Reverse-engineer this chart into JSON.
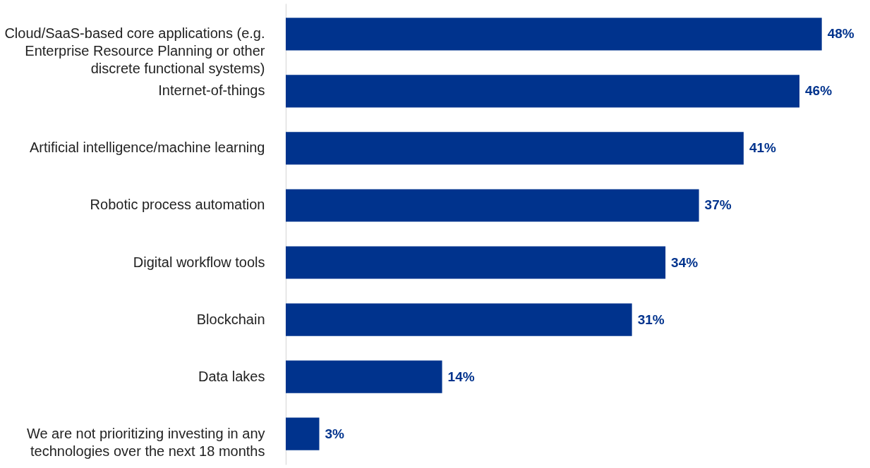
{
  "chart_data": {
    "type": "bar",
    "orientation": "horizontal",
    "categories": [
      "Cloud/SaaS-based core applications (e.g. Enterprise Resource Planning or other discrete functional systems)",
      "Internet-of-things",
      "Artificial intelligence/machine learning",
      "Robotic process automation",
      "Digital workflow tools",
      "Blockchain",
      "Data lakes",
      "We are not prioritizing investing in any technologies over the next 18 months"
    ],
    "values": [
      48,
      46,
      41,
      37,
      34,
      31,
      14,
      3
    ],
    "value_labels": [
      "48%",
      "46%",
      "41%",
      "37%",
      "34%",
      "31%",
      "14%",
      "3%"
    ],
    "color": "#00338d",
    "xlim": [
      0,
      52
    ],
    "tick_labels": "y"
  }
}
